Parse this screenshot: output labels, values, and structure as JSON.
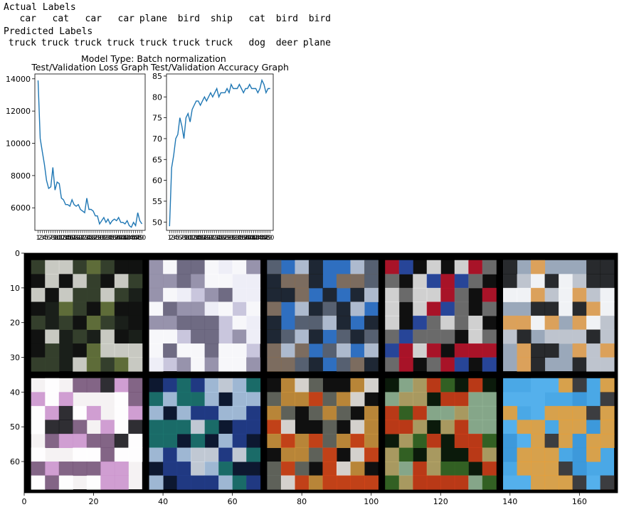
{
  "labels": {
    "actual_heading": "Actual Labels",
    "actual": [
      "car",
      "cat",
      "car",
      "car",
      "plane",
      "bird",
      "ship",
      "cat",
      "bird",
      "bird"
    ],
    "predicted_heading": "Predicted Labels",
    "predicted": [
      "truck",
      "truck",
      "truck",
      "truck",
      "truck",
      "truck",
      "truck",
      "dog",
      "deer",
      "plane"
    ]
  },
  "suptitle": "Model Type: Batch normalization",
  "colors": {
    "line": "#1f77b4",
    "grid_background": "#000000"
  },
  "chart_data": [
    {
      "type": "line",
      "title": "Test/Validation Loss Graph",
      "xlabel": "",
      "ylabel": "",
      "x_ticks_unreadable": true,
      "x": [
        1,
        2,
        3,
        4,
        5,
        6,
        7,
        8,
        9,
        10,
        11,
        12,
        13,
        14,
        15,
        16,
        17,
        18,
        19,
        20,
        21,
        22,
        23,
        24,
        25,
        26,
        27,
        28,
        29,
        30,
        31,
        32,
        33,
        34,
        35,
        36,
        37,
        38,
        39,
        40,
        41,
        42,
        43,
        44,
        45,
        46,
        47,
        48,
        49,
        50
      ],
      "values": [
        13900,
        10300,
        9500,
        8700,
        7700,
        7200,
        7300,
        8500,
        7100,
        7600,
        7500,
        6600,
        6500,
        6200,
        6200,
        6100,
        6500,
        6200,
        6100,
        6200,
        5900,
        5800,
        5700,
        6600,
        5900,
        5900,
        5800,
        5500,
        5500,
        5000,
        5200,
        5400,
        5100,
        5300,
        5000,
        5200,
        5300,
        5200,
        5400,
        5100,
        5100,
        5000,
        5200,
        4900,
        4800,
        5100,
        4900,
        5700,
        5200,
        5000
      ],
      "ylim": [
        4600,
        14300
      ],
      "yticks": [
        6000,
        8000,
        10000,
        12000,
        14000
      ],
      "grid": false
    },
    {
      "type": "line",
      "title": "Test/Validation Accuracy Graph",
      "xlabel": "",
      "ylabel": "",
      "x_ticks_unreadable": true,
      "x": [
        1,
        2,
        3,
        4,
        5,
        6,
        7,
        8,
        9,
        10,
        11,
        12,
        13,
        14,
        15,
        16,
        17,
        18,
        19,
        20,
        21,
        22,
        23,
        24,
        25,
        26,
        27,
        28,
        29,
        30,
        31,
        32,
        33,
        34,
        35,
        36,
        37,
        38,
        39,
        40,
        41,
        42,
        43,
        44,
        45,
        46,
        47,
        48,
        49,
        50
      ],
      "values": [
        49,
        63,
        66,
        70,
        71,
        75,
        73,
        70,
        75,
        76,
        74,
        77,
        78,
        79,
        79,
        78,
        79,
        80,
        79,
        80,
        81,
        80,
        81,
        82,
        80,
        81,
        81,
        81,
        82,
        81,
        83,
        82,
        82,
        82,
        83,
        82,
        81,
        82,
        82,
        83,
        82,
        82,
        82,
        81,
        82,
        84,
        83,
        81,
        82,
        82
      ],
      "ylim": [
        48,
        85.5
      ],
      "yticks": [
        50,
        55,
        60,
        65,
        70,
        75,
        80,
        85
      ],
      "grid": false
    },
    {
      "type": "heatmap",
      "title": "",
      "x_ticks": [
        0,
        20,
        40,
        60,
        80,
        100,
        120,
        140,
        160
      ],
      "y_ticks": [
        0,
        10,
        20,
        30,
        40,
        50,
        60
      ],
      "xlim": [
        0,
        171
      ],
      "ylim": [
        69,
        0
      ]
    }
  ]
}
